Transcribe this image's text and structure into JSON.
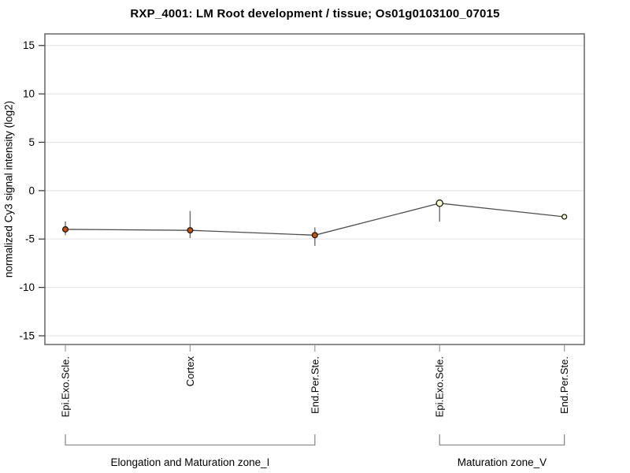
{
  "page": {
    "background": "#ffffff"
  },
  "chart_data": {
    "type": "line",
    "title": "RXP_4001: LM Root development / tissue; Os01g0103100_07015",
    "ylabel": "normalized Cy3 signal intensity (log2)",
    "xlabel": "",
    "ylim": [
      -15.9,
      16.2
    ],
    "yticks": [
      15,
      10,
      5,
      0,
      -5,
      -10,
      -15
    ],
    "grid": true,
    "legend": "none",
    "categories": [
      "Epi.Exo.Scle.",
      "Cortex",
      "End.Per.Ste.",
      "Epi.Exo.Scle.",
      "End.Per.Ste."
    ],
    "groups": [
      {
        "label": "Elongation and Maturation zone_I",
        "from": 0,
        "to": 2
      },
      {
        "label": "Maturation zone_V",
        "from": 3,
        "to": 4
      }
    ],
    "series": [
      {
        "values": [
          -4.0,
          -4.1,
          -4.6,
          -1.3,
          -2.7
        ],
        "error_high": [
          -3.2,
          -2.1,
          -3.8,
          -0.9,
          null
        ],
        "error_low": [
          -4.6,
          -4.9,
          -5.7,
          -3.2,
          null
        ],
        "marker_colors": [
          "#cc4f00",
          "#cc4f00",
          "#cc4f00",
          "#ffffc8",
          "#ffffc8"
        ],
        "marker_radii": [
          3.4,
          3.4,
          3.4,
          4.1,
          3.0
        ]
      }
    ],
    "colors": {
      "marker_high_signal": "#cc4f00",
      "marker_low_signal": "#ffffc8",
      "marker_stroke": "#1a1a1a",
      "line": "#4d4d4d",
      "error_bar": "#6e6e6e",
      "grid": "#e6e6e6",
      "frame": "#4d4d4d",
      "y_tick": "#333333",
      "x_tick": "#999999",
      "bracket": "#8c8c8c",
      "text": "#000000"
    }
  }
}
